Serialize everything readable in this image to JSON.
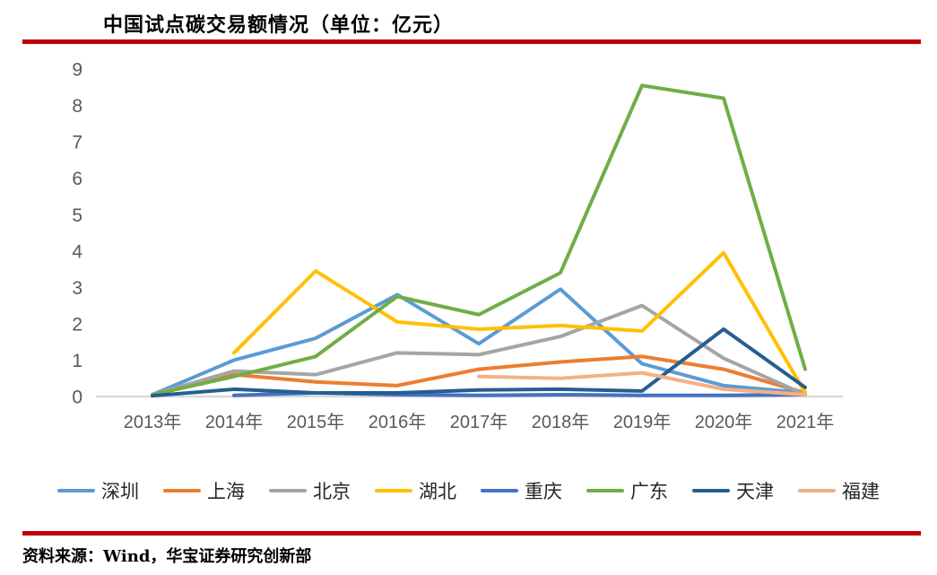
{
  "title": "中国试点碳交易额情况（单位：亿元）",
  "source_note": "资料来源：Wind，华宝证券研究创新部",
  "colors": {
    "rule_red": "#C00000",
    "axis_text": "#595959",
    "axis_line": "#D9D9D9",
    "background": "#FFFFFF"
  },
  "chart_data": {
    "type": "line",
    "title": "中国试点碳交易额情况（单位：亿元）",
    "unit": "亿元",
    "categories": [
      "2013年",
      "2014年",
      "2015年",
      "2016年",
      "2017年",
      "2018年",
      "2019年",
      "2020年",
      "2021年"
    ],
    "ylim": [
      0,
      9
    ],
    "yticks": [
      0,
      1,
      2,
      3,
      4,
      5,
      6,
      7,
      8,
      9
    ],
    "grid": false,
    "legend_position": "bottom",
    "series": [
      {
        "name": "深圳",
        "color": "#5B9BD5",
        "values": [
          0.05,
          1.0,
          1.6,
          2.8,
          1.45,
          2.95,
          0.9,
          0.3,
          0.1
        ]
      },
      {
        "name": "上海",
        "color": "#ED7D31",
        "values": [
          0.05,
          0.6,
          0.4,
          0.3,
          0.75,
          0.95,
          1.1,
          0.75,
          0.1
        ]
      },
      {
        "name": "北京",
        "color": "#A5A5A5",
        "values": [
          0.05,
          0.7,
          0.6,
          1.2,
          1.15,
          1.65,
          2.5,
          1.05,
          0.05
        ]
      },
      {
        "name": "湖北",
        "color": "#FFC000",
        "values": [
          null,
          1.2,
          3.45,
          2.05,
          1.85,
          1.95,
          1.8,
          3.95,
          0.1
        ]
      },
      {
        "name": "重庆",
        "color": "#4472C4",
        "values": [
          null,
          0.03,
          0.1,
          0.05,
          0.03,
          0.05,
          0.03,
          0.03,
          0.05
        ]
      },
      {
        "name": "广东",
        "color": "#70AD47",
        "values": [
          0.05,
          0.55,
          1.1,
          2.75,
          2.25,
          3.4,
          8.55,
          8.2,
          0.75
        ]
      },
      {
        "name": "天津",
        "color": "#255E91",
        "values": [
          0.02,
          0.2,
          0.1,
          0.1,
          0.18,
          0.2,
          0.15,
          1.85,
          0.25
        ]
      },
      {
        "name": "福建",
        "color": "#F4B183",
        "values": [
          null,
          null,
          null,
          null,
          0.55,
          0.5,
          0.65,
          0.2,
          0.05
        ]
      }
    ]
  }
}
